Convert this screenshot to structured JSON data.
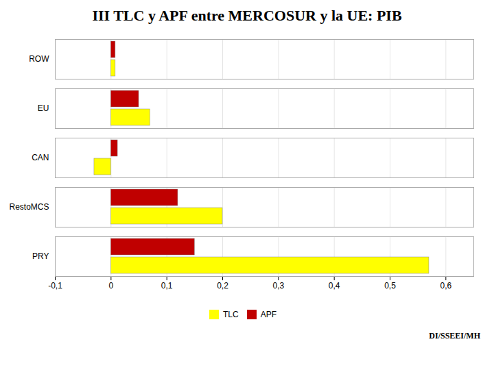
{
  "chart_data": {
    "type": "bar",
    "orientation": "horizontal",
    "title": "III TLC y APF entre MERCOSUR y la UE: PIB",
    "categories": [
      "PRY",
      "RestoMCS",
      "CAN",
      "EU",
      "ROW"
    ],
    "series": [
      {
        "name": "TLC",
        "color": "#FFFF00",
        "values": [
          0.57,
          0.2,
          -0.03,
          0.07,
          0.008
        ]
      },
      {
        "name": "APF",
        "color": "#C00000",
        "values": [
          0.15,
          0.12,
          0.012,
          0.05,
          0.008
        ]
      }
    ],
    "xlim": [
      -0.1,
      0.65
    ],
    "xticks": [
      {
        "value": -0.1,
        "label": "-0,1"
      },
      0,
      {
        "value": 0.1,
        "label": "0,1"
      },
      {
        "value": 0.2,
        "label": "0,2"
      },
      {
        "value": 0.3,
        "label": "0,3"
      },
      {
        "value": 0.4,
        "label": "0,4"
      },
      {
        "value": 0.5,
        "label": "0,5"
      },
      {
        "value": 0.6,
        "label": "0,6"
      }
    ],
    "grid": true,
    "legend": "bottom",
    "annotations": [
      "DI/SSEEI/MH"
    ]
  }
}
